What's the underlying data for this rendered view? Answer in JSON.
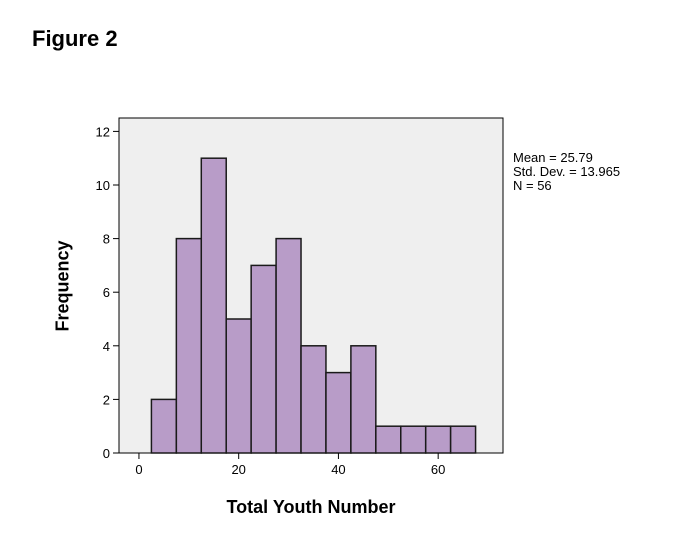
{
  "figure_label": "Figure 2",
  "chart_data": {
    "type": "bar",
    "title": "",
    "xlabel": "Total Youth Number",
    "ylabel": "Frequency",
    "bins": [
      {
        "x0": 2.5,
        "x1": 7.5,
        "count": 2
      },
      {
        "x0": 7.5,
        "x1": 12.5,
        "count": 8
      },
      {
        "x0": 12.5,
        "x1": 17.5,
        "count": 11
      },
      {
        "x0": 17.5,
        "x1": 22.5,
        "count": 5
      },
      {
        "x0": 22.5,
        "x1": 27.5,
        "count": 7
      },
      {
        "x0": 27.5,
        "x1": 32.5,
        "count": 8
      },
      {
        "x0": 32.5,
        "x1": 37.5,
        "count": 4
      },
      {
        "x0": 37.5,
        "x1": 42.5,
        "count": 3
      },
      {
        "x0": 42.5,
        "x1": 47.5,
        "count": 4
      },
      {
        "x0": 47.5,
        "x1": 52.5,
        "count": 1
      },
      {
        "x0": 52.5,
        "x1": 57.5,
        "count": 1
      },
      {
        "x0": 57.5,
        "x1": 62.5,
        "count": 1
      },
      {
        "x0": 62.5,
        "x1": 67.5,
        "count": 1
      }
    ],
    "xlim": [
      -4,
      73
    ],
    "ylim": [
      0,
      12.5
    ],
    "xticks": [
      0,
      20,
      40,
      60
    ],
    "yticks": [
      0,
      2,
      4,
      6,
      8,
      10,
      12
    ],
    "grid": false,
    "stats": {
      "mean": "Mean = 25.79",
      "std": "Std. Dev. = 13.965",
      "n": "N = 56"
    },
    "colors": {
      "bar_fill": "#b89cc8",
      "bar_stroke": "#1a1a1a",
      "plot_background": "#efefef"
    }
  }
}
